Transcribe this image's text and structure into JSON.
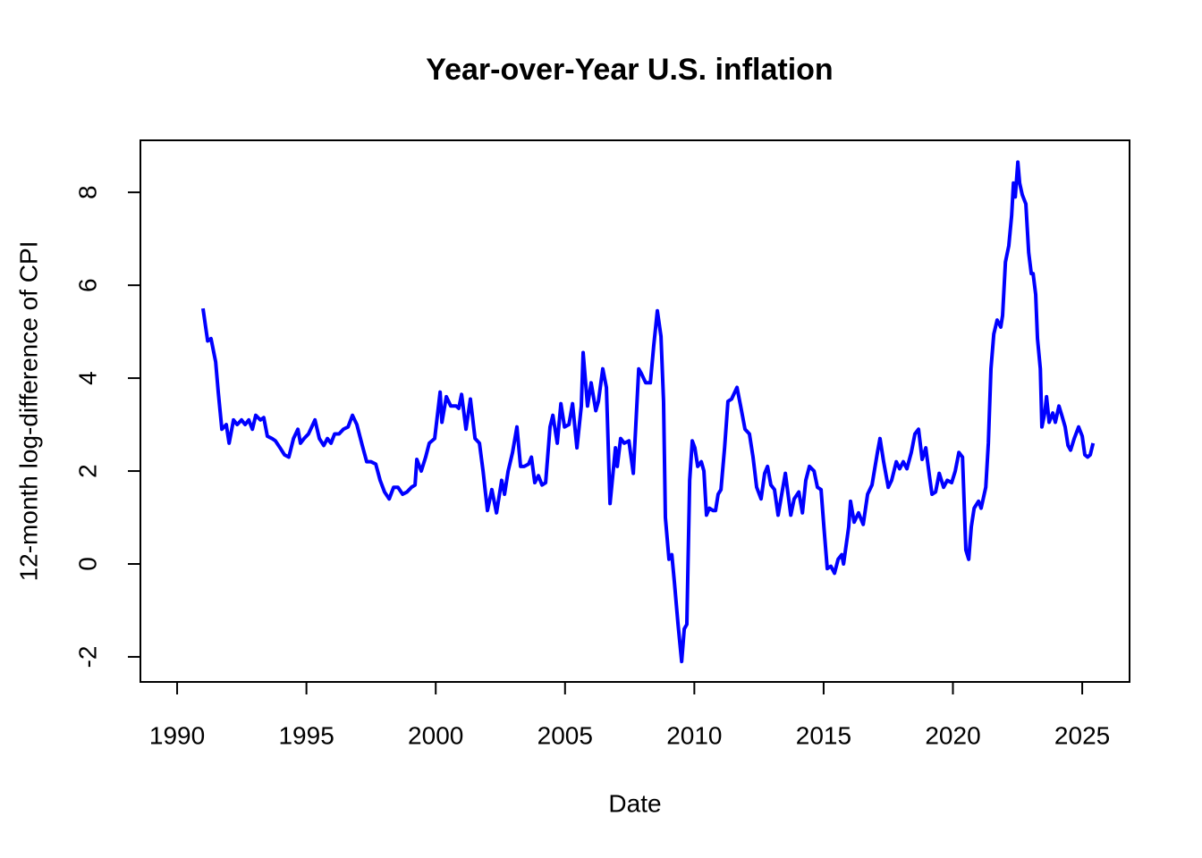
{
  "chart_data": {
    "type": "line",
    "title": "Year-over-Year U.S. inflation",
    "xlabel": "Date",
    "ylabel": "12-month log-difference of CPI",
    "color": "#0000ff",
    "xlim": [
      1988.58,
      2026.83
    ],
    "ylim": [
      -2.54,
      9.12
    ],
    "xticks": [
      1990,
      1995,
      2000,
      2005,
      2010,
      2015,
      2020,
      2025
    ],
    "yticks": [
      -2,
      0,
      2,
      4,
      6,
      8
    ],
    "x": [
      1991.0,
      1991.18,
      1991.31,
      1991.49,
      1991.59,
      1991.73,
      1991.9,
      1992.01,
      1992.18,
      1992.32,
      1992.49,
      1992.63,
      1992.77,
      1992.91,
      1993.04,
      1993.22,
      1993.35,
      1993.49,
      1993.67,
      1993.8,
      1993.98,
      1994.15,
      1994.32,
      1994.5,
      1994.67,
      1994.77,
      1994.91,
      1995.08,
      1995.33,
      1995.5,
      1995.67,
      1995.81,
      1995.95,
      1996.09,
      1996.26,
      1996.43,
      1996.61,
      1996.78,
      1996.95,
      1997.16,
      1997.33,
      1997.5,
      1997.68,
      1997.85,
      1998.02,
      1998.2,
      1998.37,
      1998.54,
      1998.72,
      1998.89,
      1999.06,
      1999.2,
      1999.27,
      1999.44,
      1999.61,
      1999.75,
      1999.96,
      2000.17,
      2000.24,
      2000.41,
      2000.58,
      2000.79,
      2000.89,
      2001.0,
      2001.17,
      2001.34,
      2001.52,
      2001.69,
      2001.83,
      2002.0,
      2002.17,
      2002.35,
      2002.55,
      2002.66,
      2002.8,
      2002.97,
      2003.14,
      2003.28,
      2003.42,
      2003.59,
      2003.7,
      2003.83,
      2003.97,
      2004.11,
      2004.25,
      2004.42,
      2004.53,
      2004.7,
      2004.84,
      2004.98,
      2005.15,
      2005.29,
      2005.46,
      2005.63,
      2005.7,
      2005.87,
      2006.01,
      2006.19,
      2006.29,
      2006.46,
      2006.6,
      2006.74,
      2006.95,
      2007.02,
      2007.15,
      2007.29,
      2007.47,
      2007.64,
      2007.85,
      2007.95,
      2008.12,
      2008.3,
      2008.43,
      2008.57,
      2008.71,
      2008.81,
      2008.88,
      2009.02,
      2009.13,
      2009.23,
      2009.37,
      2009.51,
      2009.61,
      2009.71,
      2009.82,
      2009.92,
      2010.02,
      2010.13,
      2010.27,
      2010.37,
      2010.47,
      2010.58,
      2010.72,
      2010.82,
      2010.92,
      2011.03,
      2011.17,
      2011.3,
      2011.44,
      2011.65,
      2011.79,
      2011.96,
      2012.13,
      2012.27,
      2012.41,
      2012.58,
      2012.72,
      2012.83,
      2012.96,
      2013.1,
      2013.24,
      2013.41,
      2013.52,
      2013.73,
      2013.86,
      2014.04,
      2014.18,
      2014.31,
      2014.45,
      2014.63,
      2014.76,
      2014.9,
      2015.01,
      2015.14,
      2015.28,
      2015.42,
      2015.56,
      2015.7,
      2015.77,
      2015.87,
      2015.97,
      2016.04,
      2016.18,
      2016.35,
      2016.53,
      2016.7,
      2016.87,
      2017.08,
      2017.18,
      2017.32,
      2017.5,
      2017.63,
      2017.81,
      2017.94,
      2018.08,
      2018.22,
      2018.39,
      2018.53,
      2018.67,
      2018.81,
      2018.95,
      2019.09,
      2019.19,
      2019.33,
      2019.47,
      2019.64,
      2019.78,
      2019.95,
      2020.09,
      2020.23,
      2020.37,
      2020.5,
      2020.61,
      2020.71,
      2020.82,
      2020.99,
      2021.09,
      2021.27,
      2021.37,
      2021.47,
      2021.58,
      2021.71,
      2021.85,
      2021.92,
      2022.03,
      2022.16,
      2022.27,
      2022.34,
      2022.41,
      2022.51,
      2022.58,
      2022.68,
      2022.82,
      2022.93,
      2023.03,
      2023.1,
      2023.2,
      2023.27,
      2023.38,
      2023.44,
      2023.55,
      2023.62,
      2023.72,
      2023.86,
      2023.96,
      2024.1,
      2024.21,
      2024.34,
      2024.45,
      2024.55,
      2024.69,
      2024.86,
      2025.0,
      2025.1,
      2025.21,
      2025.31,
      2025.42
    ],
    "values": [
      5.5,
      4.8,
      4.85,
      4.35,
      3.7,
      2.9,
      3.0,
      2.6,
      3.1,
      3.0,
      3.1,
      3.0,
      3.1,
      2.9,
      3.2,
      3.1,
      3.15,
      2.75,
      2.7,
      2.65,
      2.5,
      2.35,
      2.3,
      2.7,
      2.9,
      2.6,
      2.7,
      2.8,
      3.1,
      2.7,
      2.55,
      2.7,
      2.6,
      2.8,
      2.8,
      2.9,
      2.95,
      3.2,
      3.0,
      2.55,
      2.2,
      2.2,
      2.15,
      1.8,
      1.55,
      1.4,
      1.65,
      1.65,
      1.5,
      1.55,
      1.65,
      1.7,
      2.25,
      2.0,
      2.3,
      2.6,
      2.7,
      3.7,
      3.05,
      3.6,
      3.4,
      3.4,
      3.35,
      3.65,
      2.9,
      3.55,
      2.7,
      2.6,
      2.0,
      1.15,
      1.6,
      1.1,
      1.8,
      1.5,
      2.0,
      2.4,
      2.95,
      2.1,
      2.1,
      2.15,
      2.3,
      1.75,
      1.9,
      1.7,
      1.75,
      2.95,
      3.2,
      2.6,
      3.45,
      2.95,
      3.0,
      3.45,
      2.5,
      3.4,
      4.55,
      3.4,
      3.9,
      3.3,
      3.5,
      4.2,
      3.8,
      1.3,
      2.5,
      2.1,
      2.7,
      2.6,
      2.65,
      1.95,
      4.2,
      4.1,
      3.9,
      3.9,
      4.7,
      5.45,
      4.9,
      3.5,
      1.0,
      0.1,
      0.2,
      -0.4,
      -1.3,
      -2.1,
      -1.4,
      -1.3,
      1.8,
      2.65,
      2.5,
      2.1,
      2.2,
      2.0,
      1.05,
      1.2,
      1.15,
      1.15,
      1.5,
      1.6,
      2.5,
      3.5,
      3.55,
      3.8,
      3.4,
      2.9,
      2.8,
      2.3,
      1.65,
      1.4,
      1.95,
      2.1,
      1.7,
      1.6,
      1.05,
      1.6,
      1.95,
      1.05,
      1.4,
      1.55,
      1.1,
      1.8,
      2.1,
      2.0,
      1.65,
      1.6,
      0.8,
      -0.1,
      -0.05,
      -0.2,
      0.1,
      0.2,
      0.0,
      0.4,
      0.8,
      1.35,
      0.9,
      1.1,
      0.85,
      1.5,
      1.7,
      2.4,
      2.7,
      2.2,
      1.65,
      1.8,
      2.2,
      2.05,
      2.2,
      2.05,
      2.4,
      2.8,
      2.9,
      2.25,
      2.5,
      1.9,
      1.5,
      1.55,
      1.95,
      1.65,
      1.8,
      1.75,
      2.0,
      2.4,
      2.3,
      0.3,
      0.1,
      0.8,
      1.2,
      1.35,
      1.2,
      1.65,
      2.6,
      4.2,
      4.95,
      5.25,
      5.1,
      5.35,
      6.5,
      6.85,
      7.5,
      8.2,
      7.9,
      8.65,
      8.2,
      7.95,
      7.75,
      6.7,
      6.25,
      6.25,
      5.8,
      4.85,
      4.2,
      2.95,
      3.25,
      3.6,
      3.05,
      3.25,
      3.05,
      3.4,
      3.2,
      2.95,
      2.55,
      2.45,
      2.7,
      2.95,
      2.75,
      2.35,
      2.3,
      2.35,
      2.6
    ]
  }
}
